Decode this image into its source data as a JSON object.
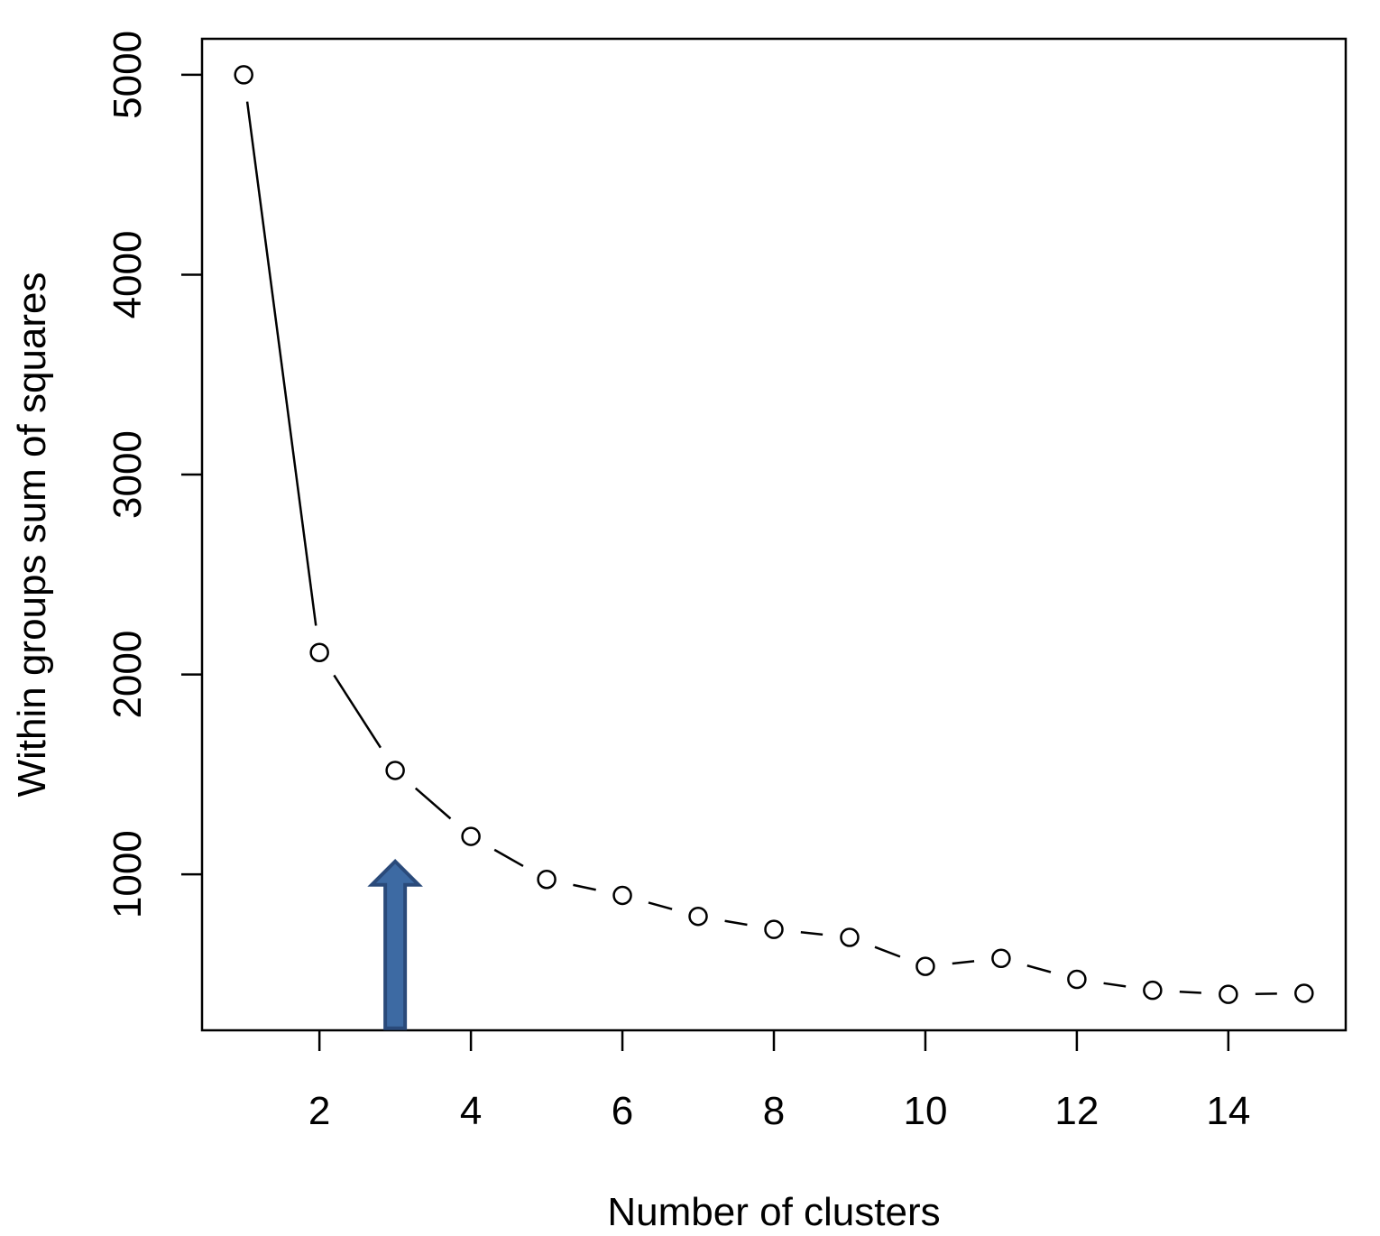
{
  "chart_data": {
    "type": "line",
    "title": "",
    "xlabel": "Number of clusters",
    "ylabel": "Within groups sum of squares",
    "xlim": [
      0.45,
      15.55
    ],
    "ylim": [
      220,
      5180
    ],
    "x_ticks": [
      2,
      4,
      6,
      8,
      10,
      12,
      14
    ],
    "x_tick_labels": [
      "2",
      "4",
      "6",
      "8",
      "10",
      "12",
      "14"
    ],
    "y_ticks": [
      1000,
      2000,
      3000,
      4000,
      5000
    ],
    "y_tick_labels": [
      "1000",
      "2000",
      "3000",
      "4000",
      "5000"
    ],
    "grid": false,
    "legend": "none",
    "marker": "open-circle",
    "line_style": "b",
    "series": [
      {
        "x": [
          1,
          2,
          3,
          4,
          5,
          6,
          7,
          8,
          9,
          10,
          11,
          12,
          13,
          14,
          15
        ],
        "y": [
          5000,
          2110,
          1520,
          1190,
          975,
          895,
          790,
          725,
          685,
          540,
          580,
          475,
          420,
          400,
          405
        ]
      }
    ],
    "annotations": [
      {
        "type": "arrow",
        "x": 3,
        "y_from": 230,
        "y_to": 1065,
        "color": "#3d6aa3",
        "edge_color": "#2a4a7a"
      }
    ]
  }
}
